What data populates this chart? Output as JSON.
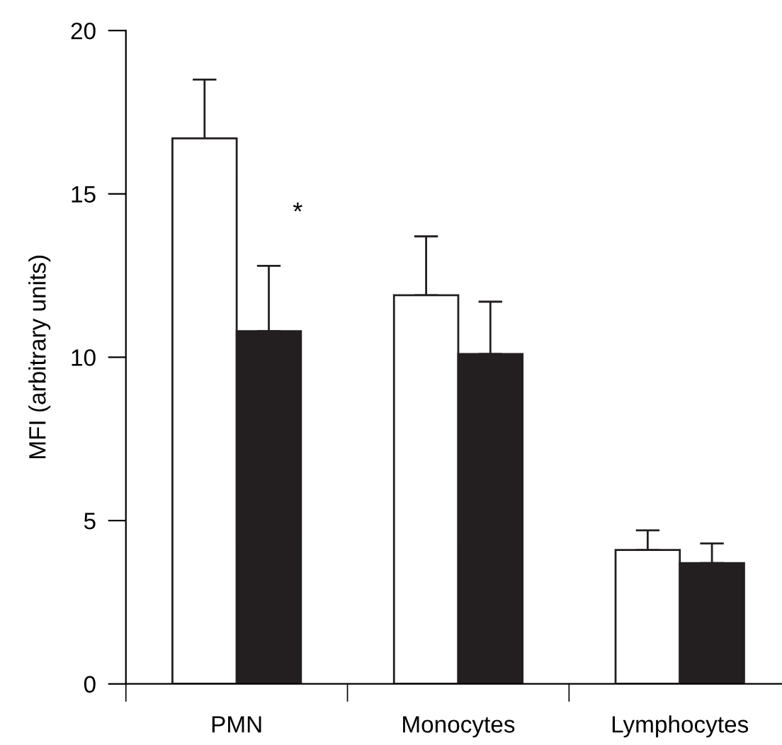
{
  "chart_data": {
    "type": "bar",
    "ylabel": "MFI (arbitrary units)",
    "categories": [
      "PMN",
      "Monocytes",
      "Lymphocytes"
    ],
    "series": [
      {
        "color": "#ffffff",
        "values": [
          16.7,
          11.9,
          4.1
        ],
        "errors": [
          [
            16.7,
            18.5
          ],
          [
            11.9,
            13.7
          ],
          [
            4.1,
            4.7
          ]
        ]
      },
      {
        "color": "#231f20",
        "values": [
          10.8,
          10.1,
          3.7
        ],
        "errors": [
          [
            10.8,
            12.8
          ],
          [
            10.1,
            11.7
          ],
          [
            3.7,
            4.3
          ]
        ]
      }
    ],
    "annotations": [
      {
        "text": "*",
        "x": "PMN",
        "y": 14.4
      }
    ],
    "ylim": [
      0,
      20
    ],
    "yticks": [
      0,
      5,
      10,
      15,
      20
    ],
    "grid": false,
    "legend": false
  }
}
